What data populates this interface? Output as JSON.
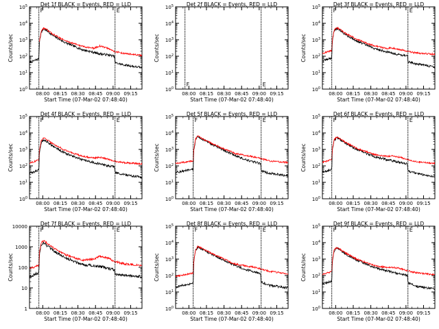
{
  "colors": {
    "events": "#000000",
    "lld": "#ff0000",
    "axes": "#000000",
    "background": "#ffffff"
  },
  "chart_data": [
    {
      "type": "line",
      "title": "Det 1f  BLACK = Events, RED = LLD",
      "xlabel": "Start Time (07-Mar-02 07:48:40)",
      "ylabel": "Counts/sec",
      "y_scale": "log",
      "y_tick_style": "power",
      "ylim": [
        1,
        100000
      ],
      "y_ticks": [
        1,
        10,
        100,
        1000,
        10000,
        100000
      ],
      "x_units": "minutes since 07:48:40",
      "xlim": [
        0,
        96
      ],
      "x_ticks": [
        11.33,
        26.33,
        41.33,
        56.33,
        71.33,
        86.33
      ],
      "x_tick_labels": [
        "08:00",
        "08:15",
        "08:30",
        "08:45",
        "09:00",
        "09:15"
      ],
      "interval_markers": [
        {
          "x": 8.0,
          "label": "F"
        },
        {
          "x": 73.0,
          "label": "E"
        }
      ],
      "series": [
        {
          "name": "Events",
          "color": "#000000",
          "x": [
            0,
            8,
            8.5,
            10,
            12,
            15,
            20,
            30,
            45,
            60,
            67,
            72.5,
            73,
            80,
            96
          ],
          "values": [
            40,
            70,
            800,
            3000,
            4500,
            3500,
            1800,
            700,
            250,
            140,
            120,
            100,
            40,
            30,
            20
          ]
        },
        {
          "name": "LLD",
          "color": "#ff0000",
          "x": [
            8.5,
            10,
            12,
            15,
            20,
            30,
            45,
            55,
            60,
            67,
            72,
            80,
            96
          ],
          "values": [
            800,
            3200,
            5200,
            4000,
            2200,
            900,
            400,
            300,
            420,
            300,
            200,
            150,
            110
          ]
        }
      ]
    },
    {
      "type": "line",
      "title": "Det 2f  BLACK = Events, RED = LLD",
      "xlabel": "Start Time (07-Mar-02 07:48:40)",
      "ylabel": "Counts/sec",
      "y_scale": "log",
      "y_tick_style": "power",
      "ylim": [
        1,
        100000
      ],
      "y_ticks": [
        1,
        10,
        100,
        1000,
        10000,
        100000
      ],
      "x_units": "minutes since 07:48:40",
      "xlim": [
        0,
        96
      ],
      "x_ticks": [
        11.33,
        26.33,
        41.33,
        56.33,
        71.33,
        86.33
      ],
      "x_tick_labels": [
        "08:00",
        "08:15",
        "08:30",
        "08:45",
        "09:00",
        "09:15"
      ],
      "interval_markers": [
        {
          "x": 8.0,
          "label": "F"
        },
        {
          "x": 73.0,
          "label": "E"
        }
      ],
      "series": []
    },
    {
      "type": "line",
      "title": "Det 3f  BLACK = Events, RED = LLD",
      "xlabel": "Start Time (07-Mar-02 07:48:40)",
      "ylabel": "Counts/sec",
      "y_scale": "log",
      "y_tick_style": "power",
      "ylim": [
        1,
        100000
      ],
      "y_ticks": [
        1,
        10,
        100,
        1000,
        10000,
        100000
      ],
      "x_units": "minutes since 07:48:40",
      "xlim": [
        0,
        96
      ],
      "x_ticks": [
        11.33,
        26.33,
        41.33,
        56.33,
        71.33,
        86.33
      ],
      "x_tick_labels": [
        "08:00",
        "08:15",
        "08:30",
        "08:45",
        "09:00",
        "09:15"
      ],
      "interval_markers": [
        {
          "x": 8.0,
          "label": "F"
        },
        {
          "x": 73.0,
          "label": "E"
        }
      ],
      "series": [
        {
          "name": "Events",
          "color": "#000000",
          "x": [
            0,
            8,
            8.5,
            10,
            12,
            15,
            20,
            30,
            45,
            60,
            67,
            72.5,
            73,
            80,
            96
          ],
          "values": [
            50,
            80,
            900,
            3500,
            4800,
            3800,
            2000,
            800,
            280,
            150,
            120,
            110,
            45,
            35,
            22
          ]
        },
        {
          "name": "LLD",
          "color": "#ff0000",
          "x": [
            0,
            8,
            8.5,
            10,
            12,
            15,
            20,
            30,
            45,
            55,
            60,
            67,
            72,
            80,
            96
          ],
          "values": [
            150,
            220,
            1000,
            3800,
            5400,
            4300,
            2400,
            1000,
            420,
            300,
            320,
            250,
            200,
            160,
            130
          ]
        }
      ]
    },
    {
      "type": "line",
      "title": "Det 4f  BLACK = Events, RED = LLD",
      "xlabel": "Start Time (07-Mar-02 07:48:40)",
      "ylabel": "Counts/sec",
      "y_scale": "log",
      "y_tick_style": "power",
      "ylim": [
        1,
        100000
      ],
      "y_ticks": [
        1,
        10,
        100,
        1000,
        10000,
        100000
      ],
      "x_units": "minutes since 07:48:40",
      "xlim": [
        0,
        96
      ],
      "x_ticks": [
        11.33,
        26.33,
        41.33,
        56.33,
        71.33,
        86.33
      ],
      "x_tick_labels": [
        "08:00",
        "08:15",
        "08:30",
        "08:45",
        "09:00",
        "09:15"
      ],
      "interval_markers": [
        {
          "x": 8.0,
          "label": "F"
        },
        {
          "x": 73.0,
          "label": "E"
        }
      ],
      "series": [
        {
          "name": "Events",
          "color": "#000000",
          "x": [
            0,
            8,
            8.5,
            10,
            12,
            15,
            20,
            30,
            45,
            60,
            67,
            72.5,
            73,
            80,
            96
          ],
          "values": [
            35,
            55,
            700,
            2600,
            3800,
            3000,
            1600,
            600,
            230,
            130,
            100,
            90,
            40,
            30,
            20
          ]
        },
        {
          "name": "LLD",
          "color": "#ff0000",
          "x": [
            0,
            8,
            8.5,
            10,
            12,
            15,
            20,
            30,
            45,
            55,
            60,
            67,
            72,
            80,
            96
          ],
          "values": [
            150,
            230,
            900,
            3400,
            4900,
            3900,
            2200,
            900,
            380,
            300,
            330,
            260,
            200,
            160,
            130
          ]
        }
      ]
    },
    {
      "type": "line",
      "title": "Det 5f  BLACK = Events, RED = LLD",
      "xlabel": "Start Time (07-Mar-02 07:48:40)",
      "ylabel": "Counts/sec",
      "y_scale": "log",
      "y_tick_style": "power",
      "ylim": [
        1,
        100000
      ],
      "y_ticks": [
        1,
        10,
        100,
        1000,
        10000,
        100000
      ],
      "x_units": "minutes since 07:48:40",
      "xlim": [
        0,
        96
      ],
      "x_ticks": [
        11.33,
        26.33,
        41.33,
        56.33,
        71.33,
        86.33
      ],
      "x_tick_labels": [
        "08:00",
        "08:15",
        "08:30",
        "08:45",
        "09:00",
        "09:15"
      ],
      "interval_markers": [
        {
          "x": 15.0,
          "label": "F"
        },
        {
          "x": 73.0,
          "label": "E"
        }
      ],
      "series": [
        {
          "name": "Events",
          "color": "#000000",
          "x": [
            0,
            15,
            15.5,
            17,
            19,
            22,
            30,
            40,
            50,
            60,
            67,
            72.5,
            73,
            80,
            96
          ],
          "values": [
            40,
            60,
            800,
            4000,
            6000,
            4500,
            2200,
            1000,
            450,
            230,
            170,
            140,
            50,
            35,
            25
          ]
        },
        {
          "name": "LLD",
          "color": "#ff0000",
          "x": [
            0,
            15,
            15.5,
            17,
            19,
            22,
            30,
            40,
            50,
            60,
            67,
            72,
            80,
            96
          ],
          "values": [
            140,
            200,
            900,
            4200,
            6500,
            5000,
            2500,
            1200,
            600,
            420,
            350,
            290,
            200,
            160
          ]
        }
      ]
    },
    {
      "type": "line",
      "title": "Det 6f  BLACK = Events, RED = LLD",
      "xlabel": "Start Time (07-Mar-02 07:48:40)",
      "ylabel": "Counts/sec",
      "y_scale": "log",
      "y_tick_style": "power",
      "ylim": [
        1,
        100000
      ],
      "y_ticks": [
        1,
        10,
        100,
        1000,
        10000,
        100000
      ],
      "x_units": "minutes since 07:48:40",
      "xlim": [
        0,
        96
      ],
      "x_ticks": [
        11.33,
        26.33,
        41.33,
        56.33,
        71.33,
        86.33
      ],
      "x_tick_labels": [
        "08:00",
        "08:15",
        "08:30",
        "08:45",
        "09:00",
        "09:15"
      ],
      "interval_markers": [
        {
          "x": 8.0,
          "label": "F"
        },
        {
          "x": 73.0,
          "label": "E"
        }
      ],
      "series": [
        {
          "name": "Events",
          "color": "#000000",
          "x": [
            0,
            8,
            8.5,
            10,
            12,
            15,
            20,
            30,
            45,
            60,
            67,
            72.5,
            73,
            80,
            96
          ],
          "values": [
            40,
            60,
            900,
            3600,
            5200,
            4100,
            2300,
            950,
            350,
            200,
            160,
            130,
            50,
            35,
            22
          ]
        },
        {
          "name": "LLD",
          "color": "#ff0000",
          "x": [
            0,
            8,
            8.5,
            10,
            12,
            15,
            20,
            30,
            45,
            55,
            60,
            67,
            72,
            80,
            96
          ],
          "values": [
            160,
            240,
            1000,
            3900,
            5600,
            4500,
            2600,
            1100,
            480,
            380,
            400,
            330,
            240,
            180,
            140
          ]
        }
      ]
    },
    {
      "type": "line",
      "title": "Det 7f  BLACK = Events, RED = LLD",
      "xlabel": "Start Time (07-Mar-02 07:48:40)",
      "ylabel": "Counts/sec",
      "y_scale": "log",
      "y_tick_style": "plain",
      "ylim": [
        1,
        10000
      ],
      "y_ticks": [
        1,
        10,
        100,
        1000,
        10000
      ],
      "x_units": "minutes since 07:48:40",
      "xlim": [
        0,
        96
      ],
      "x_ticks": [
        11.33,
        26.33,
        41.33,
        56.33,
        71.33,
        86.33
      ],
      "x_tick_labels": [
        "08:00",
        "08:15",
        "08:30",
        "08:45",
        "09:00",
        "09:15"
      ],
      "interval_markers": [
        {
          "x": 8.0,
          "label": "F"
        },
        {
          "x": 73.0,
          "label": "E"
        }
      ],
      "series": [
        {
          "name": "Events",
          "color": "#000000",
          "x": [
            0,
            8,
            8.5,
            10,
            12,
            15,
            20,
            30,
            45,
            60,
            67,
            72.5,
            73,
            80,
            96
          ],
          "values": [
            35,
            55,
            400,
            1300,
            1600,
            1100,
            650,
            300,
            140,
            110,
            90,
            75,
            45,
            40,
            35
          ]
        },
        {
          "name": "LLD",
          "color": "#ff0000",
          "x": [
            0,
            8,
            8.5,
            10,
            12,
            15,
            20,
            30,
            45,
            55,
            60,
            67,
            72,
            80,
            96
          ],
          "values": [
            90,
            120,
            500,
            1600,
            2000,
            1500,
            900,
            420,
            220,
            250,
            350,
            280,
            200,
            150,
            120
          ]
        }
      ]
    },
    {
      "type": "line",
      "title": "Det 8f  BLACK = Events, RED = LLD",
      "xlabel": "Start Time (07-Mar-02 07:48:40)",
      "ylabel": "Counts/sec",
      "y_scale": "log",
      "y_tick_style": "power",
      "ylim": [
        1,
        100000
      ],
      "y_ticks": [
        1,
        10,
        100,
        1000,
        10000,
        100000
      ],
      "x_units": "minutes since 07:48:40",
      "xlim": [
        0,
        96
      ],
      "x_ticks": [
        11.33,
        26.33,
        41.33,
        56.33,
        71.33,
        86.33
      ],
      "x_tick_labels": [
        "08:00",
        "08:15",
        "08:30",
        "08:45",
        "09:00",
        "09:15"
      ],
      "interval_markers": [
        {
          "x": 15.0,
          "label": "F"
        },
        {
          "x": 73.0,
          "label": "E"
        }
      ],
      "series": [
        {
          "name": "Events",
          "color": "#000000",
          "x": [
            0,
            15,
            15.5,
            17,
            19,
            22,
            30,
            40,
            50,
            60,
            67,
            72.5,
            73,
            80,
            96
          ],
          "values": [
            20,
            35,
            600,
            3500,
            5500,
            4300,
            2100,
            950,
            430,
            230,
            170,
            140,
            40,
            25,
            18
          ]
        },
        {
          "name": "LLD",
          "color": "#ff0000",
          "x": [
            0,
            15,
            15.5,
            17,
            19,
            22,
            30,
            40,
            50,
            60,
            67,
            72,
            80,
            96
          ],
          "values": [
            90,
            140,
            700,
            3800,
            6000,
            4700,
            2400,
            1100,
            520,
            380,
            320,
            260,
            180,
            130
          ]
        }
      ]
    },
    {
      "type": "line",
      "title": "Det 9f  BLACK = Events, RED = LLD",
      "xlabel": "Start Time (07-Mar-02 07:48:40)",
      "ylabel": "Counts/sec",
      "y_scale": "log",
      "y_tick_style": "power",
      "ylim": [
        1,
        100000
      ],
      "y_ticks": [
        1,
        10,
        100,
        1000,
        10000,
        100000
      ],
      "x_units": "minutes since 07:48:40",
      "xlim": [
        0,
        96
      ],
      "x_ticks": [
        11.33,
        26.33,
        41.33,
        56.33,
        71.33,
        86.33
      ],
      "x_tick_labels": [
        "08:00",
        "08:15",
        "08:30",
        "08:45",
        "09:00",
        "09:15"
      ],
      "interval_markers": [
        {
          "x": 8.0,
          "label": "F"
        },
        {
          "x": 73.0,
          "label": "E"
        }
      ],
      "series": [
        {
          "name": "Events",
          "color": "#000000",
          "x": [
            0,
            8,
            8.5,
            10,
            12,
            15,
            20,
            30,
            45,
            60,
            67,
            72.5,
            73,
            80,
            96
          ],
          "values": [
            30,
            45,
            700,
            3200,
            4600,
            3600,
            2000,
            800,
            300,
            160,
            120,
            100,
            35,
            22,
            15
          ]
        },
        {
          "name": "LLD",
          "color": "#ff0000",
          "x": [
            0,
            8,
            8.5,
            10,
            12,
            15,
            20,
            30,
            45,
            55,
            60,
            67,
            72,
            80,
            96
          ],
          "values": [
            120,
            170,
            800,
            3500,
            5000,
            4000,
            2300,
            950,
            400,
            300,
            320,
            260,
            200,
            150,
            110
          ]
        }
      ]
    }
  ]
}
